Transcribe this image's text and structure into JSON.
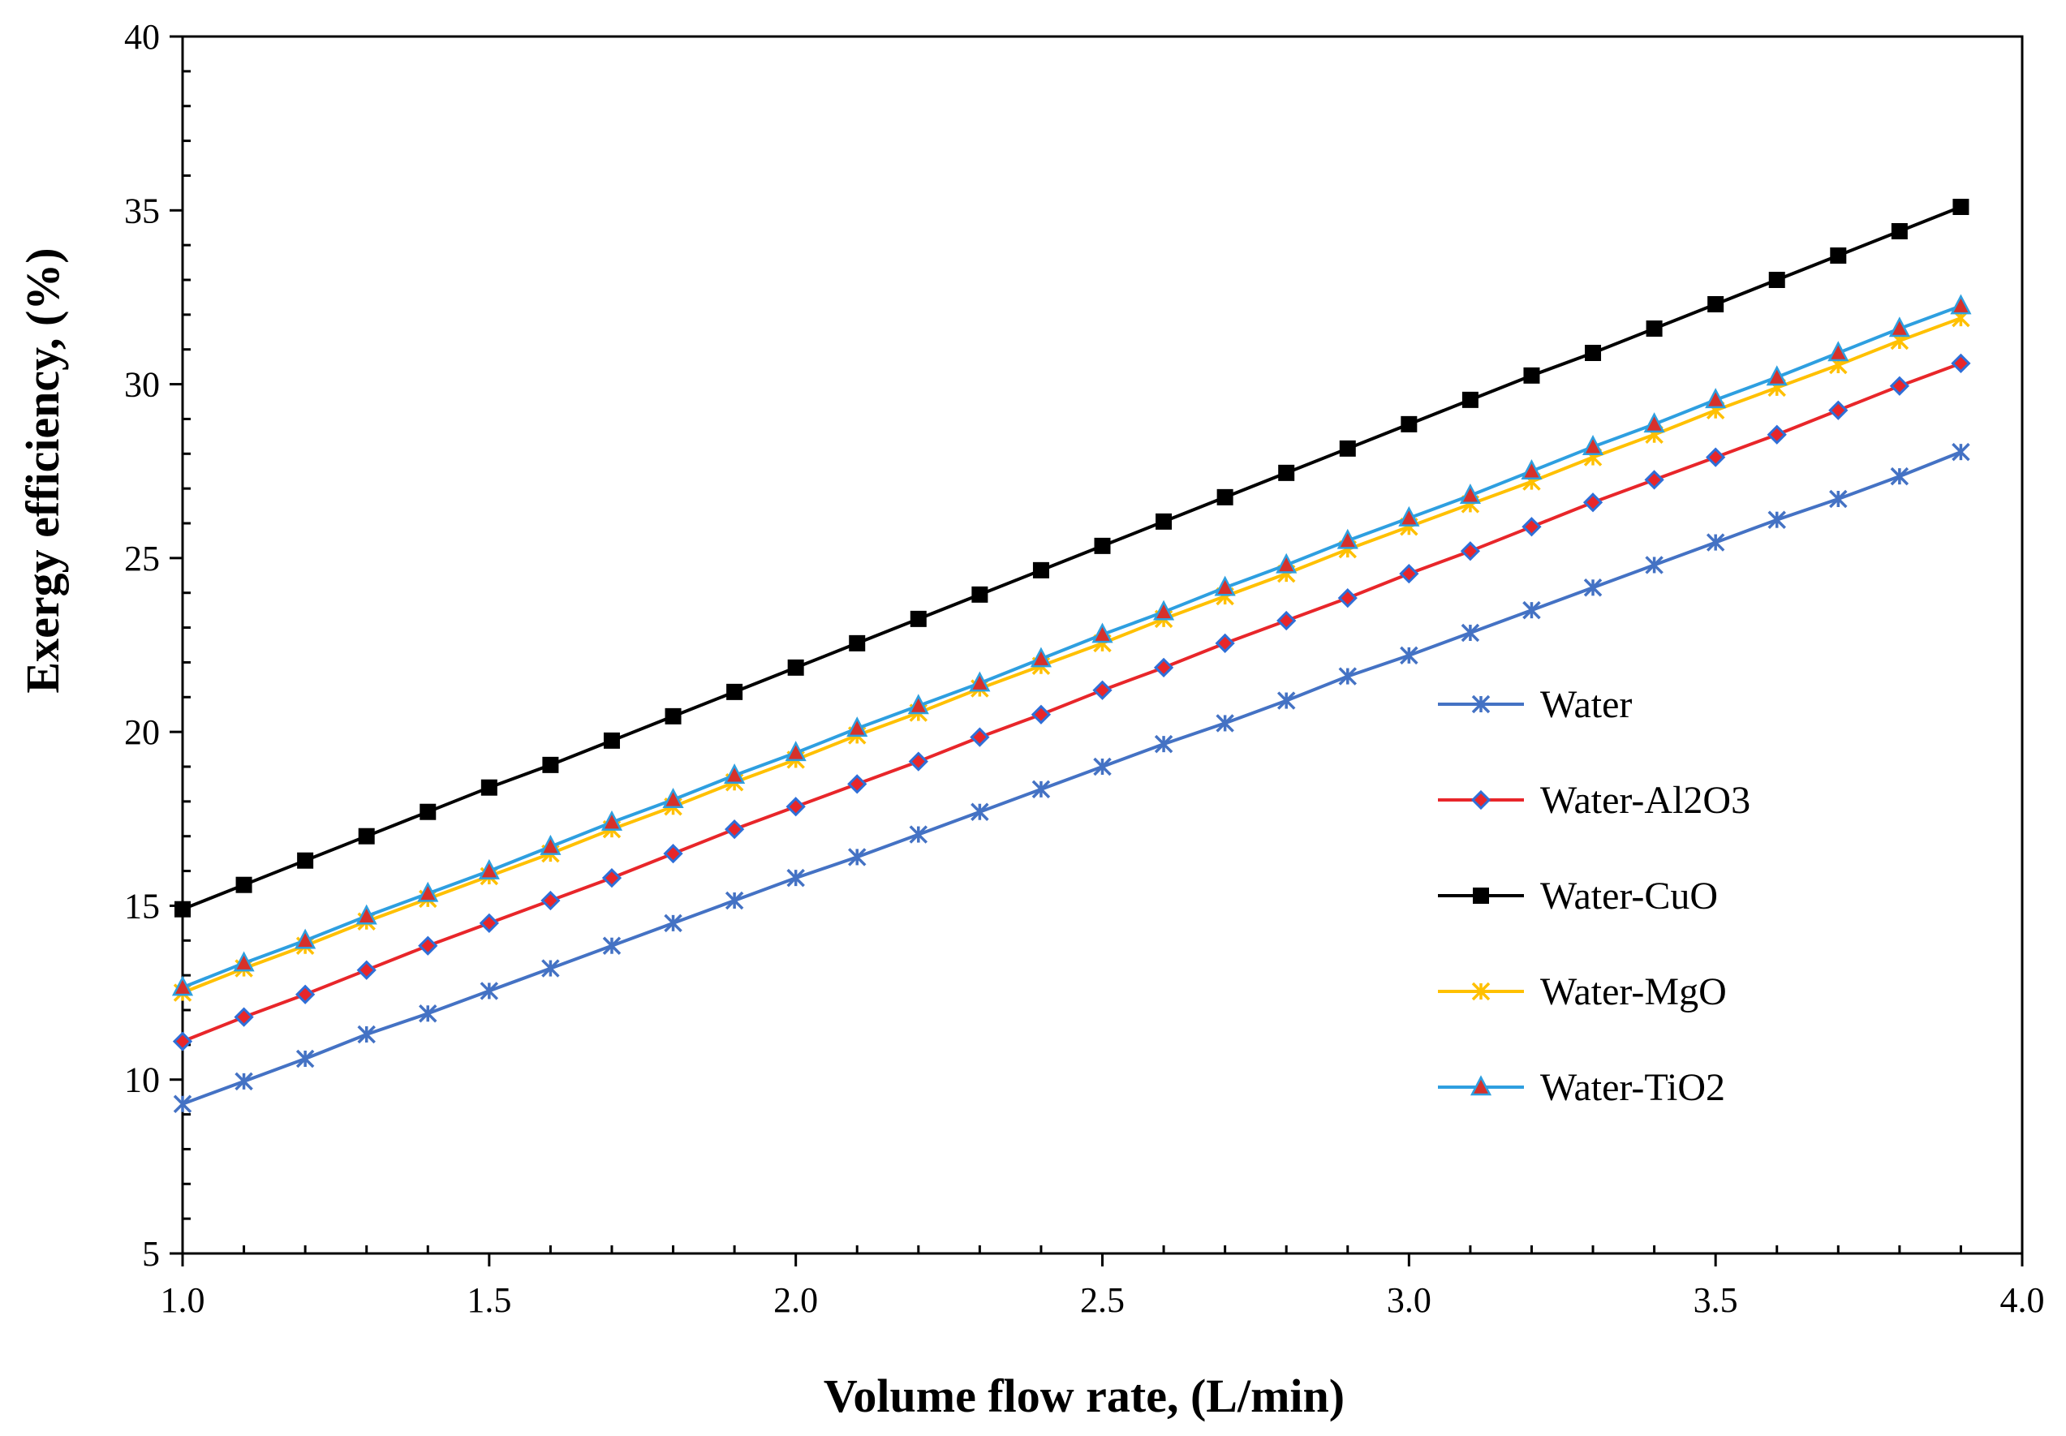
{
  "chart_data": {
    "type": "line",
    "title": "",
    "xlabel": "Volume flow rate, (L/min)",
    "ylabel": "Exergy efficiency, (%)",
    "xlim": [
      1.0,
      4.0
    ],
    "ylim": [
      5,
      40
    ],
    "x_ticks": [
      "1.0",
      "1.5",
      "2.0",
      "2.5",
      "3.0",
      "3.5",
      "4.0"
    ],
    "y_ticks": [
      "5",
      "10",
      "15",
      "20",
      "25",
      "30",
      "35",
      "40"
    ],
    "grid": false,
    "legend_position": "right",
    "x": [
      1.0,
      1.1,
      1.2,
      1.3,
      1.4,
      1.5,
      1.6,
      1.7,
      1.8,
      1.9,
      2.0,
      2.1,
      2.2,
      2.3,
      2.4,
      2.5,
      2.6,
      2.7,
      2.8,
      2.9,
      3.0,
      3.1,
      3.2,
      3.3,
      3.4,
      3.5,
      3.6,
      3.7,
      3.8,
      3.9
    ],
    "series": [
      {
        "name": "Water",
        "color": "#4472C4",
        "marker": "star",
        "values": [
          9.3,
          9.95,
          10.6,
          11.3,
          11.9,
          12.55,
          13.2,
          13.85,
          14.5,
          15.15,
          15.8,
          16.4,
          17.05,
          17.7,
          18.35,
          19.0,
          19.65,
          20.25,
          20.9,
          21.6,
          22.2,
          22.85,
          23.5,
          24.15,
          24.8,
          25.45,
          26.1,
          26.7,
          27.35,
          28.05
        ]
      },
      {
        "name": "Water-Al2O3",
        "color": "#E8262A",
        "marker": "diamond",
        "values": [
          11.1,
          11.8,
          12.45,
          13.15,
          13.85,
          14.5,
          15.15,
          15.8,
          16.5,
          17.2,
          17.85,
          18.5,
          19.15,
          19.85,
          20.5,
          21.2,
          21.85,
          22.55,
          23.2,
          23.85,
          24.55,
          25.2,
          25.9,
          26.6,
          27.25,
          27.9,
          28.55,
          29.25,
          29.95,
          30.6
        ]
      },
      {
        "name": "Water-CuO",
        "color": "#000000",
        "marker": "square",
        "values": [
          14.9,
          15.6,
          16.3,
          17.0,
          17.7,
          18.4,
          19.05,
          19.75,
          20.45,
          21.15,
          21.85,
          22.55,
          23.25,
          23.95,
          24.65,
          25.35,
          26.05,
          26.75,
          27.45,
          28.15,
          28.85,
          29.55,
          30.25,
          30.9,
          31.6,
          32.3,
          33.0,
          33.7,
          34.4,
          35.1
        ]
      },
      {
        "name": "Water-MgO",
        "color": "#FFC000",
        "marker": "star",
        "values": [
          12.5,
          13.2,
          13.85,
          14.55,
          15.2,
          15.85,
          16.5,
          17.2,
          17.85,
          18.55,
          19.2,
          19.9,
          20.55,
          21.25,
          21.9,
          22.55,
          23.25,
          23.9,
          24.55,
          25.25,
          25.9,
          26.55,
          27.2,
          27.9,
          28.55,
          29.25,
          29.9,
          30.55,
          31.25,
          31.9
        ]
      },
      {
        "name": "Water-TiO2",
        "color": "#2E9FE0",
        "marker": "triangle",
        "marker_color": "#D6312B",
        "values": [
          12.65,
          13.35,
          14.0,
          14.7,
          15.35,
          16.0,
          16.7,
          17.4,
          18.05,
          18.75,
          19.4,
          20.1,
          20.75,
          21.4,
          22.1,
          22.8,
          23.45,
          24.15,
          24.8,
          25.5,
          26.15,
          26.8,
          27.5,
          28.2,
          28.85,
          29.55,
          30.2,
          30.9,
          31.6,
          32.25
        ]
      }
    ]
  }
}
